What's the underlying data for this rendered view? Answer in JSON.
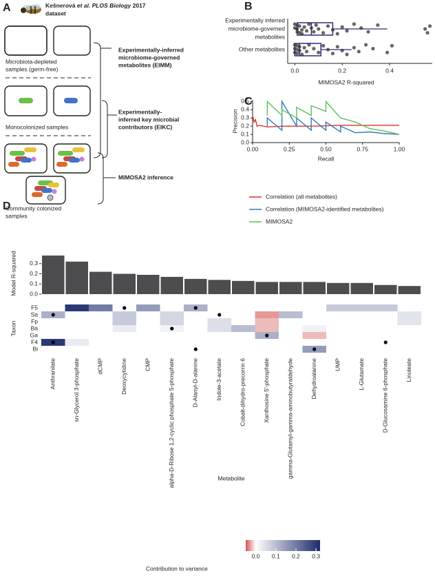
{
  "panel_labels": [
    "A",
    "B",
    "C",
    "D"
  ],
  "panel_a": {
    "header": {
      "line1": [
        "Kešnerová ",
        "et al. PLOS Biology",
        " 2017"
      ],
      "line2": "dataset"
    },
    "germ_free": [
      "Microbiota-depleted",
      "samples (germ-free)"
    ],
    "monocolonized": "Monocolonized samples",
    "community": [
      "Community colonized",
      "samples"
    ],
    "eimm": [
      "Experimentally-inferred",
      "microbiome-governed",
      "metabolites (EIMM)"
    ],
    "eikc": [
      "Experimentally-",
      "inferred key microbial",
      "contributors (EIKC)"
    ],
    "mimosa": "MIMOSA2 inference"
  },
  "chart_data": [
    {
      "type": "box",
      "categories": [
        [
          "Experimentally inferred",
          "microbiome-governed",
          "metabolites"
        ],
        [
          "Other metabolites"
        ]
      ],
      "x_label": "MIMOSA2 R-squared",
      "xlim": [
        -0.03,
        0.58
      ],
      "xticks": [
        {
          "value": 0,
          "label": "0.0"
        },
        0.2,
        0.4
      ],
      "color": "#2e2a78",
      "boxes": [
        {
          "whisker_low": 0.0,
          "q1": 0.01,
          "median": 0.07,
          "q3": 0.16,
          "whisker_high": 0.39
        },
        {
          "whisker_low": 0.0,
          "q1": 0.0,
          "median": 0.02,
          "q3": 0.11,
          "whisker_high": 0.24
        }
      ],
      "points": [
        [
          0.0,
          0.0,
          0.01,
          0.01,
          0.01,
          0.02,
          0.02,
          0.03,
          0.03,
          0.04,
          0.05,
          0.06,
          0.07,
          0.08,
          0.09,
          0.1,
          0.12,
          0.14,
          0.16,
          0.18,
          0.2,
          0.22,
          0.25,
          0.28,
          0.31,
          0.35,
          0.55,
          0.56,
          0.57
        ],
        [
          0.0,
          0.0,
          0.0,
          0.01,
          0.01,
          0.01,
          0.02,
          0.02,
          0.03,
          0.04,
          0.05,
          0.06,
          0.08,
          0.1,
          0.12,
          0.14,
          0.16,
          0.18,
          0.2,
          0.22,
          0.25,
          0.27,
          0.3,
          0.33,
          0.39,
          0.41
        ]
      ]
    },
    {
      "type": "line",
      "x_label": "Recall",
      "y_label": "Precision",
      "xlim": [
        0,
        1
      ],
      "ylim": [
        0,
        0.52
      ],
      "xticks": [
        {
          "value": 0,
          "label": "0.00"
        },
        0.25,
        {
          "value": 0.5,
          "label": "0.50"
        },
        0.75,
        {
          "value": 1,
          "label": "1.00"
        }
      ],
      "yticks": [
        {
          "value": 0,
          "label": "0.0"
        },
        0.1,
        0.2,
        0.3,
        0.4,
        0.5
      ],
      "series": [
        {
          "name": "Correlation (all metabolites)",
          "color": "#e0312b",
          "x": [
            0,
            0.01,
            0.02,
            0.03,
            0.05,
            0.1,
            0.2,
            0.4,
            0.6,
            0.8,
            1.0
          ],
          "y": [
            0.33,
            0.25,
            0.28,
            0.2,
            0.21,
            0.19,
            0.2,
            0.2,
            0.21,
            0.21,
            0.21
          ]
        },
        {
          "name": "Correlation (MIMOSA2-identified metabolites)",
          "color": "#2b7bba",
          "x": [
            0.1,
            0.1,
            0.2,
            0.2,
            0.3,
            0.3,
            0.4,
            0.4,
            0.5,
            0.5,
            0.6,
            0.6,
            0.7,
            0.8,
            0.9,
            1.0
          ],
          "y": [
            0.2,
            0.3,
            0.15,
            0.5,
            0.2,
            0.3,
            0.15,
            0.3,
            0.15,
            0.25,
            0.13,
            0.2,
            0.12,
            0.13,
            0.11,
            0.1
          ]
        },
        {
          "name": "MIMOSA2",
          "color": "#5cbf5c",
          "x": [
            0.1,
            0.1,
            0.2,
            0.2,
            0.3,
            0.3,
            0.4,
            0.4,
            0.5,
            0.5,
            0.6,
            0.7,
            0.8,
            0.9,
            1.0
          ],
          "y": [
            0.33,
            0.5,
            0.33,
            0.4,
            0.3,
            0.43,
            0.33,
            0.45,
            0.38,
            0.5,
            0.3,
            0.25,
            0.17,
            0.14,
            0.1
          ]
        }
      ]
    },
    {
      "type": "bar",
      "y_label": "Model R-squared",
      "color": "#4d4d4f",
      "ylim": [
        0,
        0.4
      ],
      "yticks": [
        {
          "value": 0,
          "label": "0.0"
        },
        0.1,
        0.2,
        0.3
      ],
      "values": [
        0.38,
        0.32,
        0.22,
        0.2,
        0.19,
        0.17,
        0.15,
        0.14,
        0.13,
        0.12,
        0.12,
        0.12,
        0.11,
        0.11,
        0.09,
        0.08
      ]
    },
    {
      "type": "heatmap",
      "y_label": "Taxon",
      "x_label": "Metabolite",
      "categories": [
        "Anthranilate",
        "sn-Glycerol 3-phosphate",
        "dCMP",
        "Deoxycytidine",
        "CMP",
        "alpha-D-Ribose 1,2-cyclic phosphate 5-phosphate",
        "D-Alanyl-D-alanine",
        "Indole-3-acetate",
        "Cobalt-dihydro-precorrin 6",
        "Xanthosine 5'-phosphate",
        "gamma-Glutamyl-gamma-aminobutyraldehyde",
        "Dehydroalanine",
        "UMP",
        "L-Glutamate",
        "D-Glucosamine 6-phosphate",
        "Linoleate"
      ],
      "rows": [
        "F5",
        "Sa",
        "Fp",
        "Ba",
        "Ga",
        "F4",
        "Bi"
      ],
      "values": [
        [
          0,
          0.3,
          0.2,
          0,
          0.15,
          0,
          0.12,
          0,
          0,
          0,
          0,
          0,
          0.08,
          0.08,
          0.08,
          0
        ],
        [
          0.12,
          0,
          0,
          0.08,
          0,
          0.06,
          0,
          0,
          0,
          -0.03,
          0.1,
          0,
          0,
          0,
          0,
          0.04
        ],
        [
          0,
          0,
          0,
          0.08,
          0,
          0.06,
          0,
          0.05,
          0,
          -0.02,
          0,
          0,
          0,
          0,
          0,
          0.04
        ],
        [
          0,
          0,
          0,
          0.03,
          0,
          0.02,
          0,
          0.05,
          0.1,
          -0.02,
          0,
          0.02,
          0,
          0,
          0,
          0
        ],
        [
          0,
          0,
          0,
          0,
          0,
          0,
          0,
          0,
          0,
          0.12,
          0,
          -0.02,
          0,
          0,
          0,
          0
        ],
        [
          0.3,
          0.03,
          0,
          0,
          0,
          0,
          0,
          0,
          0,
          0,
          0,
          0,
          0,
          0,
          0,
          0
        ],
        [
          0,
          0,
          0,
          0,
          0,
          0,
          0,
          0,
          0,
          0,
          0,
          0.15,
          0,
          0,
          0,
          0
        ]
      ],
      "dots": [
        [
          false,
          false,
          false,
          true,
          false,
          false,
          true,
          false,
          false,
          false,
          false,
          false,
          false,
          false,
          false,
          false
        ],
        [
          true,
          false,
          false,
          false,
          false,
          false,
          false,
          true,
          false,
          false,
          false,
          false,
          false,
          false,
          false,
          false
        ],
        [
          false,
          false,
          false,
          false,
          false,
          false,
          false,
          false,
          false,
          false,
          false,
          false,
          false,
          false,
          false,
          false
        ],
        [
          false,
          false,
          false,
          false,
          false,
          true,
          false,
          false,
          false,
          false,
          false,
          false,
          false,
          false,
          false,
          false
        ],
        [
          false,
          false,
          false,
          false,
          false,
          false,
          false,
          false,
          false,
          true,
          false,
          false,
          false,
          false,
          false,
          false
        ],
        [
          true,
          false,
          false,
          false,
          false,
          false,
          false,
          false,
          false,
          false,
          false,
          false,
          false,
          false,
          true,
          false
        ],
        [
          false,
          false,
          false,
          false,
          false,
          false,
          true,
          false,
          false,
          false,
          false,
          true,
          false,
          false,
          false,
          false
        ]
      ],
      "colorbar_title": "Contribution to variance",
      "clim": [
        -0.05,
        0.32
      ],
      "cticks": [
        {
          "value": 0,
          "label": "0.0"
        },
        0.1,
        0.2,
        0.3
      ],
      "low_color": "#d3544f",
      "mid_color": "#ffffff",
      "high_color": "#1d2c6c"
    }
  ]
}
